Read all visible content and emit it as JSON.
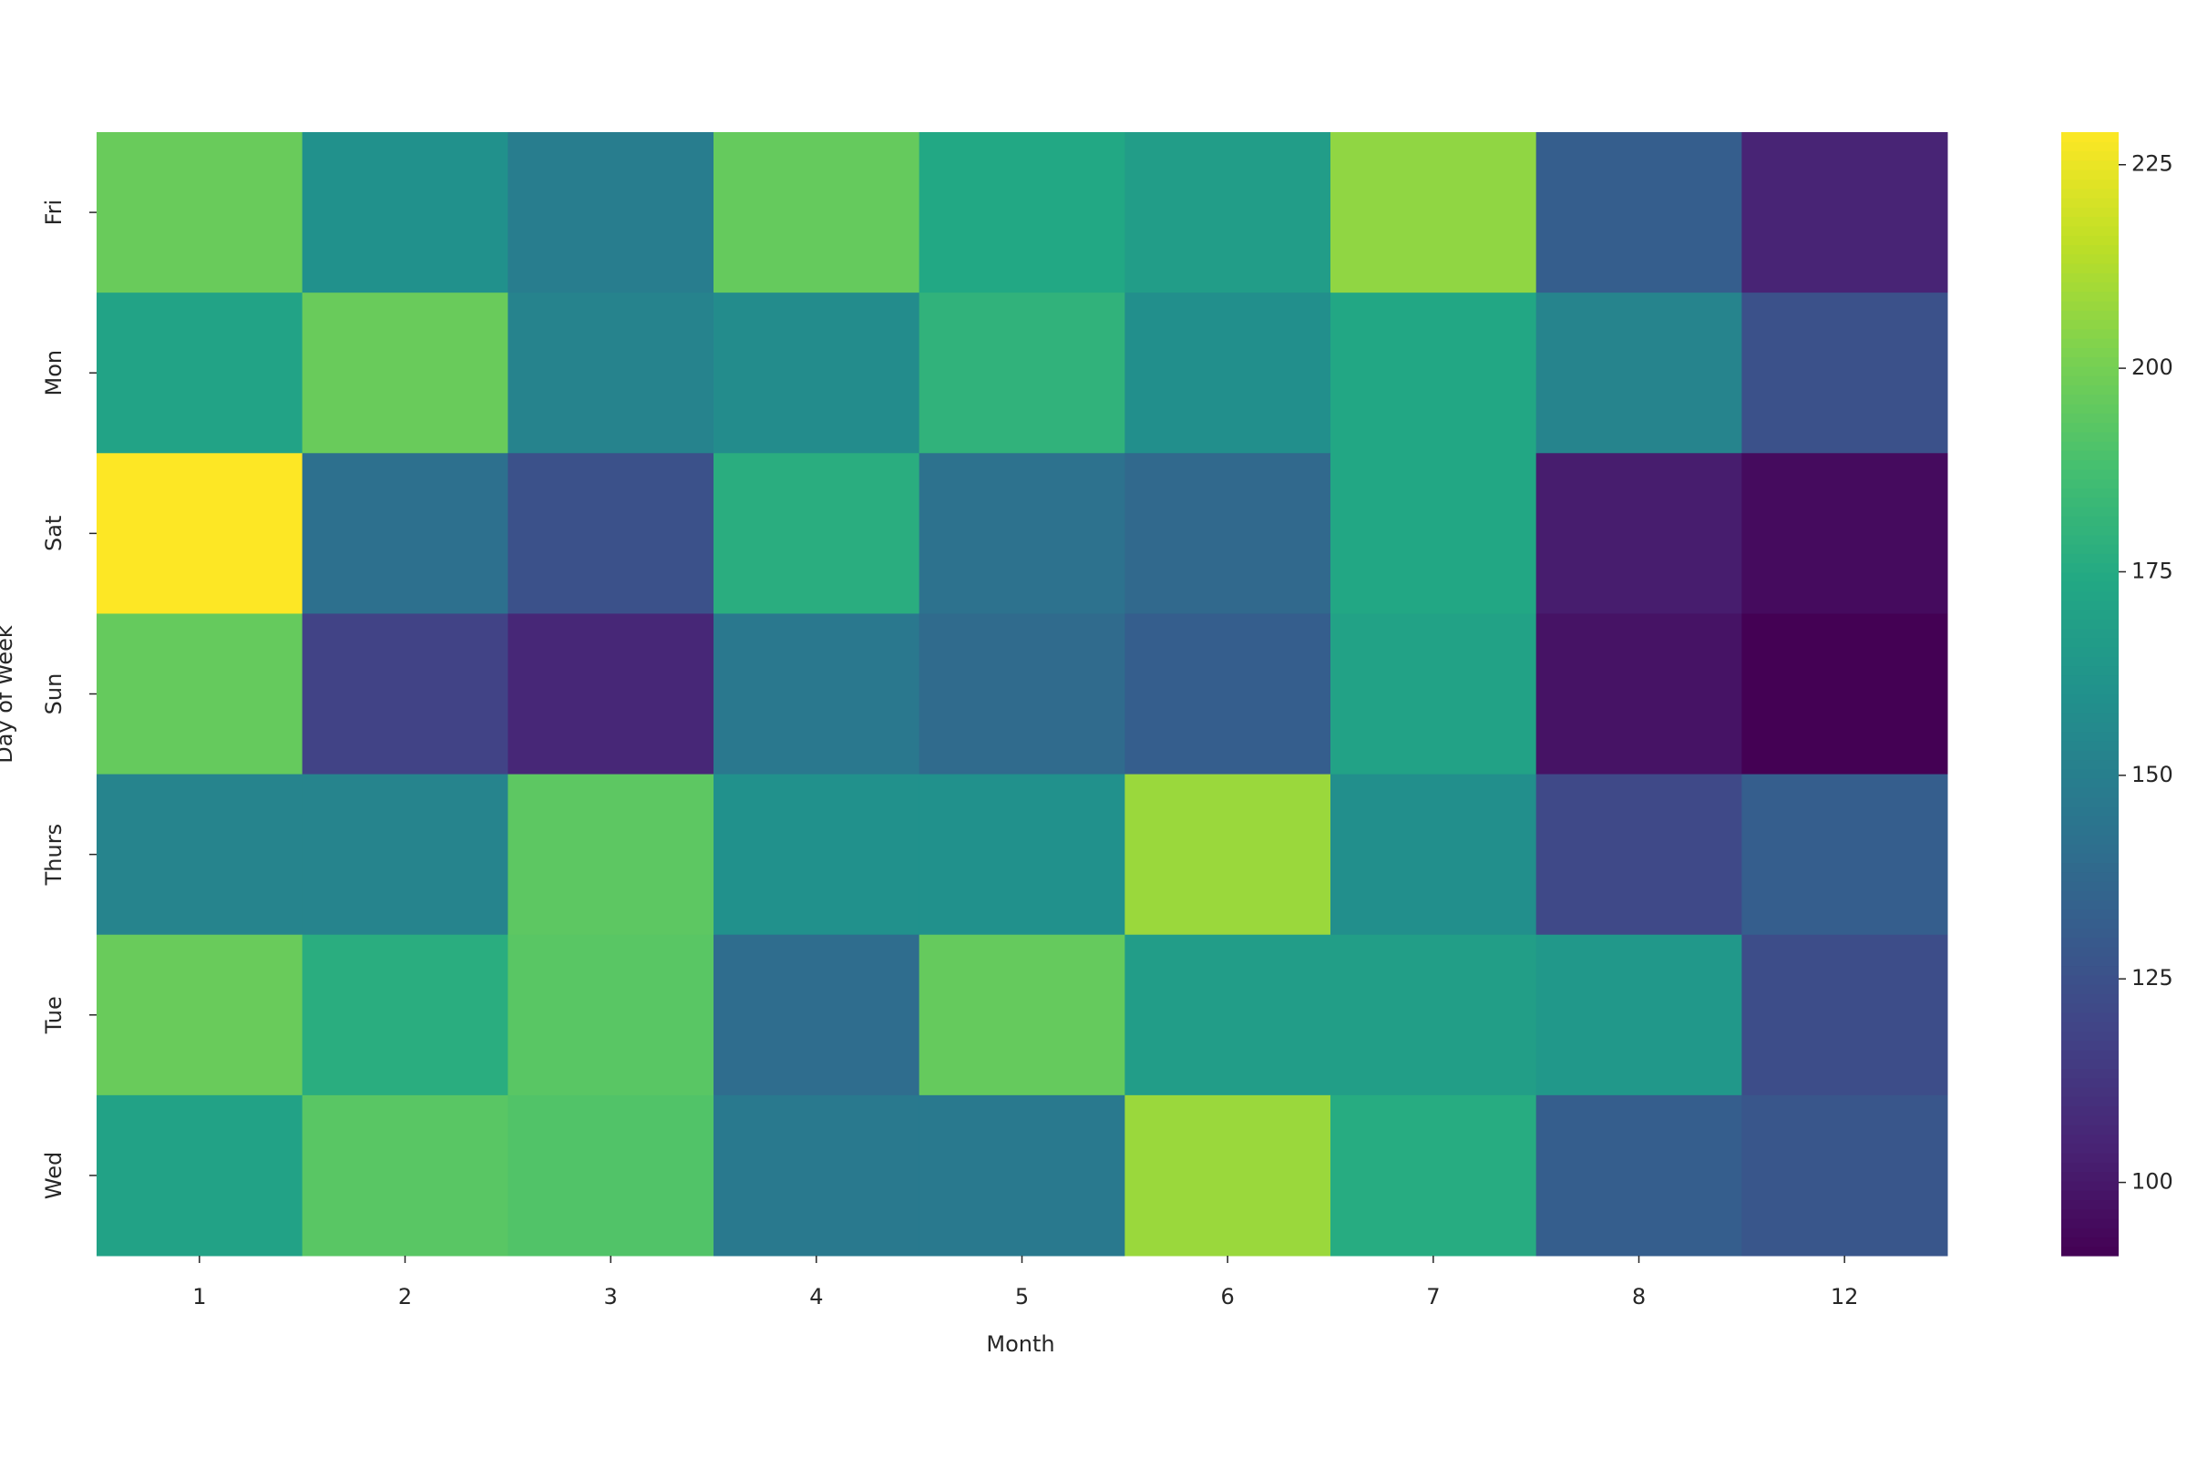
{
  "chart_data": {
    "type": "heatmap",
    "xlabel": "Month",
    "ylabel": "Day of Week",
    "x": [
      1,
      2,
      3,
      4,
      5,
      6,
      7,
      8,
      12
    ],
    "categories": [
      "Fri",
      "Mon",
      "Sat",
      "Sun",
      "Thurs",
      "Tue",
      "Wed"
    ],
    "values": [
      [
        197,
        160,
        149,
        196,
        174,
        167,
        206,
        132,
        105
      ],
      [
        171,
        197,
        152,
        157,
        180,
        159,
        173,
        153,
        125
      ],
      [
        229,
        142,
        125,
        177,
        143,
        138,
        173,
        102,
        95
      ],
      [
        196,
        118,
        106,
        146,
        139,
        132,
        170,
        98,
        91
      ],
      [
        153,
        153,
        194,
        160,
        160,
        208,
        159,
        121,
        132
      ],
      [
        197,
        177,
        193,
        140,
        196,
        167,
        168,
        164,
        123
      ],
      [
        170,
        193,
        191,
        147,
        147,
        208,
        176,
        132,
        128
      ]
    ],
    "colormap": "viridis",
    "clim": [
      91,
      229
    ],
    "cticks": [
      100,
      125,
      150,
      175,
      200,
      225
    ]
  }
}
